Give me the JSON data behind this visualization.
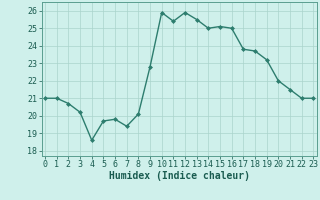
{
  "x": [
    0,
    1,
    2,
    3,
    4,
    5,
    6,
    7,
    8,
    9,
    10,
    11,
    12,
    13,
    14,
    15,
    16,
    17,
    18,
    19,
    20,
    21,
    22,
    23
  ],
  "y": [
    21.0,
    21.0,
    20.7,
    20.2,
    18.6,
    19.7,
    19.8,
    19.4,
    20.1,
    22.8,
    25.9,
    25.4,
    25.9,
    25.5,
    25.0,
    25.1,
    25.0,
    23.8,
    23.7,
    23.2,
    22.0,
    21.5,
    21.0,
    21.0
  ],
  "line_color": "#2d7d6e",
  "marker": "D",
  "marker_size": 2.0,
  "line_width": 1.0,
  "xlabel": "Humidex (Indice chaleur)",
  "xlabel_fontsize": 7,
  "xlabel_color": "#1a5c50",
  "yticks": [
    18,
    19,
    20,
    21,
    22,
    23,
    24,
    25,
    26
  ],
  "xticks": [
    0,
    1,
    2,
    3,
    4,
    5,
    6,
    7,
    8,
    9,
    10,
    11,
    12,
    13,
    14,
    15,
    16,
    17,
    18,
    19,
    20,
    21,
    22,
    23
  ],
  "xlim": [
    -0.3,
    23.3
  ],
  "ylim": [
    17.7,
    26.5
  ],
  "bg_color": "#cff0eb",
  "grid_color": "#aad4cc",
  "tick_fontsize": 6,
  "tick_color": "#1a5c50"
}
